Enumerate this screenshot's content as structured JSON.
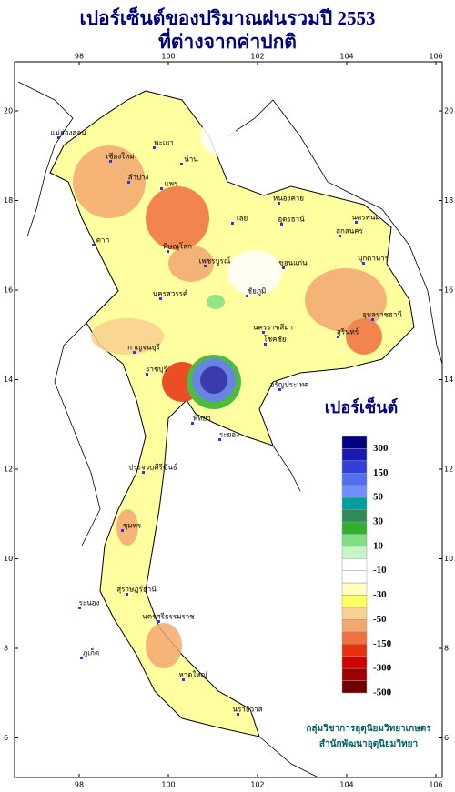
{
  "header": {
    "title_line1": "เปอร์เซ็นต์ของปริมาณฝนรวมปี 2553",
    "title_line2": "ที่ต่างจากค่าปกติ"
  },
  "map": {
    "lon_ticks": [
      98,
      100,
      102,
      104,
      106
    ],
    "lat_ticks": [
      20,
      18,
      16,
      14,
      12,
      10,
      8,
      6
    ],
    "places": [
      "แม่ฮ่องสอน",
      "เชียงใหม่",
      "ลำปาง",
      "พะเยา",
      "น่าน",
      "แพร่",
      "ตาก",
      "พิษณุโลก",
      "เพชรบูรณ์",
      "เลย",
      "หนองคาย",
      "อุดรธานี",
      "สกลนคร",
      "นครพนม",
      "มุกดาหาร",
      "ขอนแก่น",
      "ชัยภูมิ",
      "นครสวรรค์",
      "นครราชสีมา",
      "โชคชัย",
      "สุรินทร์",
      "อุบลราชธานี",
      "กาญจนบุรี",
      "ราชบุรี",
      "อรัญประเทศ",
      "พัทยา",
      "ระยอง",
      "ประจวบคีรีขันธ์",
      "ชุมพร",
      "ระนอง",
      "สุราษฎร์ธานี",
      "นครศรีธรรมราช",
      "ภูเก็ต",
      "หาดใหญ่",
      "นราธิวาส"
    ]
  },
  "legend": {
    "title": "เปอร์เซ็นต์",
    "colors": [
      "#000080",
      "#1a1ab0",
      "#3040d8",
      "#5070f0",
      "#7090ff",
      "#00a0a0",
      "#2e8b57",
      "#30b030",
      "#80e080",
      "#c8f5c8",
      "#ffffff",
      "#ffffff",
      "#ffffc0",
      "#ffff60",
      "#f8d090",
      "#f4a870",
      "#f07040",
      "#e83010",
      "#d00000",
      "#a00000",
      "#700000"
    ],
    "labels": [
      300,
      150,
      50,
      30,
      10,
      -10,
      -30,
      -50,
      -150,
      -300,
      -500
    ]
  },
  "credits": {
    "line1": "กลุ่มวิชาการอุตุนิยมวิทยาเกษตร",
    "line2": "สำนักพัฒนาอุตุนิยมวิทยา"
  }
}
